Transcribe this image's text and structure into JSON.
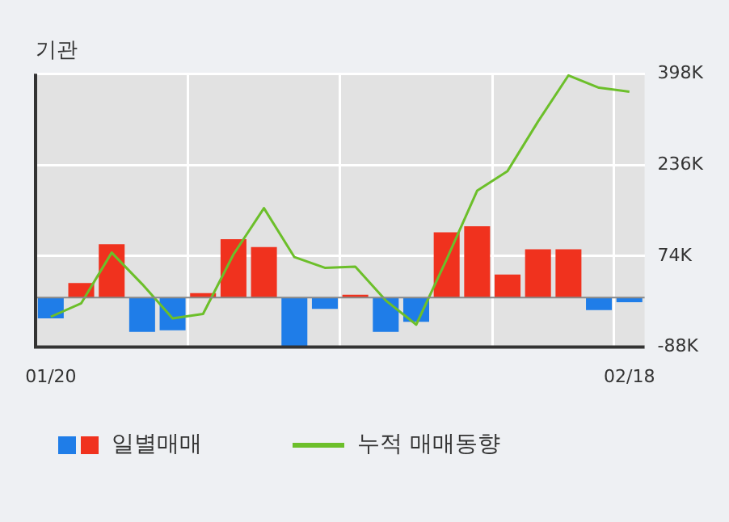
{
  "chart_data": {
    "type": "bar",
    "title": "기관",
    "categories": [
      "01/20",
      null,
      null,
      null,
      null,
      null,
      null,
      null,
      null,
      null,
      null,
      null,
      null,
      null,
      null,
      null,
      null,
      null,
      null,
      "02/18"
    ],
    "series": [
      {
        "name": "일별매매",
        "colors": [
          "#1f7de8",
          "#f0321e",
          "#f0321e",
          "#1f7de8",
          "#1f7de8",
          "#f0321e",
          "#f0321e",
          "#f0321e",
          "#1f7de8",
          "#1f7de8",
          "#f0321e",
          "#1f7de8",
          "#1f7de8",
          "#f0321e",
          "#f0321e",
          "#f0321e",
          "#f0321e",
          "#f0321e",
          "#1f7de8",
          "#1f7de8"
        ],
        "values": [
          -37,
          26,
          95,
          -61,
          -58,
          8,
          104,
          90,
          -87,
          -20,
          5,
          -61,
          -43,
          116,
          127,
          41,
          86,
          86,
          -22,
          -8
        ]
      },
      {
        "name": "누적 매매동향",
        "type": "line",
        "color": "#6cbf2a",
        "values": [
          -34,
          -10,
          80,
          24,
          -37,
          -29,
          77,
          159,
          72,
          53,
          55,
          -5,
          -48,
          68,
          190,
          225,
          313,
          395,
          373,
          366
        ]
      }
    ],
    "ylim": [
      -88,
      398
    ],
    "yticks": [
      {
        "value": -88,
        "label": "-88K"
      },
      {
        "value": 74,
        "label": "74K"
      },
      {
        "value": 236,
        "label": "236K"
      },
      {
        "value": 398,
        "label": "398K"
      }
    ],
    "grid": true,
    "legend": "bottom",
    "marker": "none"
  }
}
